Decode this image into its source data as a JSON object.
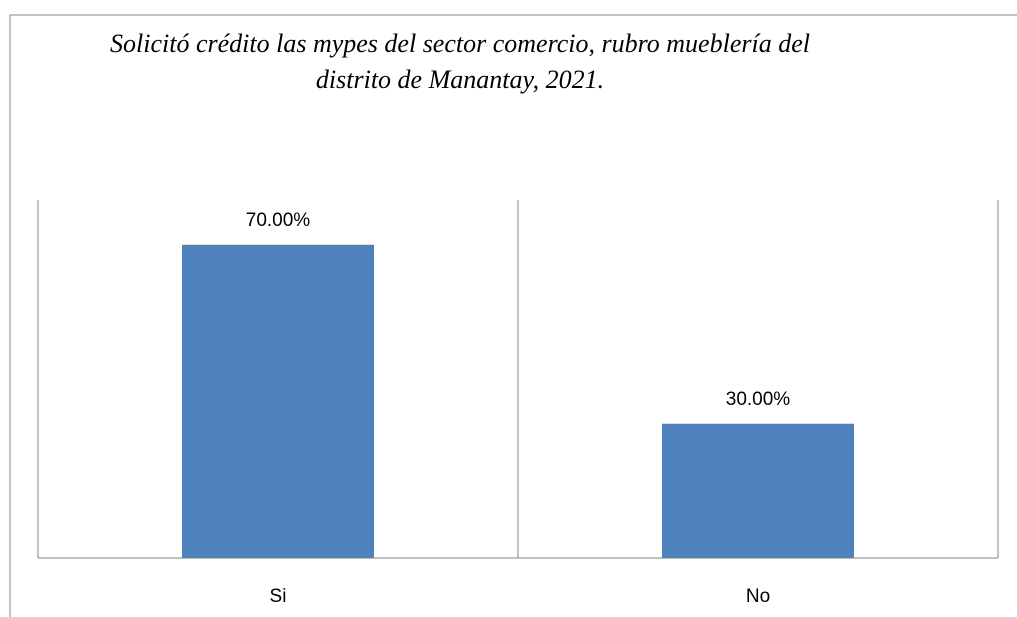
{
  "chart_data": {
    "type": "bar",
    "title": "Solicitó crédito las mypes del sector comercio, rubro mueblería del distrito de Manantay, 2021.",
    "categories": [
      "Si",
      "No"
    ],
    "values": [
      70,
      30
    ],
    "value_labels": [
      "70.00%",
      "30.00%"
    ],
    "color": "#4f81bd",
    "ylim": [
      0,
      80
    ]
  }
}
